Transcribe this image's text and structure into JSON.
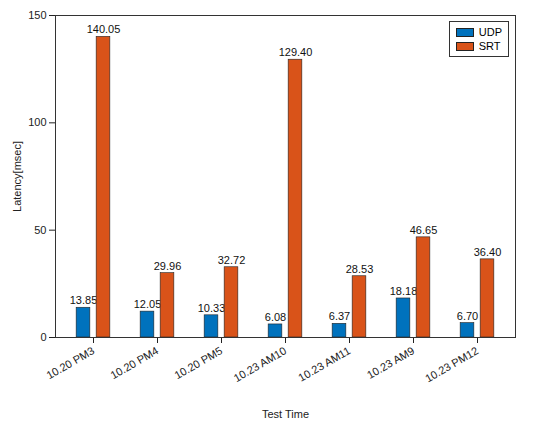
{
  "chart_data": {
    "type": "bar",
    "categories": [
      "10.20 PM3",
      "10.20 PM4",
      "10.20 PM5",
      "10.23 AM10",
      "10.23 AM11",
      "10.23 AM9",
      "10.23 PM12"
    ],
    "series": [
      {
        "name": "UDP",
        "color": "#0072BD",
        "values": [
          13.85,
          12.05,
          10.33,
          6.08,
          6.37,
          18.18,
          6.7
        ],
        "value_labels": [
          "13.85",
          "12.05",
          "10.33",
          "6.08",
          "6.37",
          "18.18",
          "6.70"
        ]
      },
      {
        "name": "SRT",
        "color": "#D95319",
        "values": [
          140.05,
          29.96,
          32.72,
          129.4,
          28.53,
          46.65,
          36.4
        ],
        "value_labels": [
          "140.05",
          "29.96",
          "32.72",
          "129.40",
          "28.53",
          "46.65",
          "36.40"
        ]
      }
    ],
    "x_label": "Test Time",
    "y_label": "Latency[msec]",
    "ylim": [
      0,
      150
    ],
    "yticks": [
      0,
      50,
      100,
      150
    ],
    "grid": false,
    "legend": "northeast",
    "data_labels": true
  }
}
